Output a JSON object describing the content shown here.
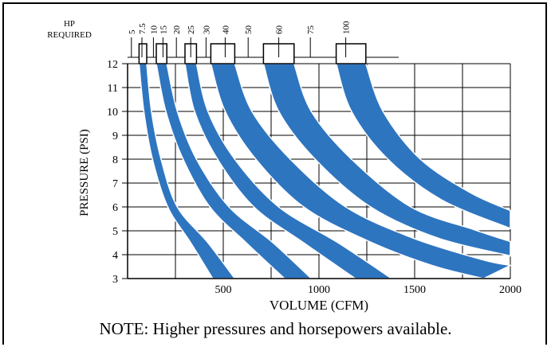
{
  "chart_data": {
    "type": "area",
    "title": "",
    "xlabel": "VOLUME (CFM)",
    "ylabel": "PRESSURE (PSI)",
    "xlim": [
      0,
      2000
    ],
    "ylim": [
      3,
      12
    ],
    "x_ticks": [
      500,
      1000,
      1500,
      2000
    ],
    "y_ticks": [
      3,
      4,
      5,
      6,
      7,
      8,
      9,
      10,
      11,
      12
    ],
    "grid": true,
    "band_color": "#2e75c0",
    "hp_axis": {
      "title_line1": "HP",
      "title_line2": "REQUIRED",
      "labels": [
        {
          "hp": "5",
          "cfm": 20
        },
        {
          "hp": "7.5",
          "cfm": 75
        },
        {
          "hp": "10",
          "cfm": 135
        },
        {
          "hp": "15",
          "cfm": 185
        },
        {
          "hp": "20",
          "cfm": 255
        },
        {
          "hp": "25",
          "cfm": 330
        },
        {
          "hp": "30",
          "cfm": 410
        },
        {
          "hp": "40",
          "cfm": 510
        },
        {
          "hp": "50",
          "cfm": 630
        },
        {
          "hp": "60",
          "cfm": 790
        },
        {
          "hp": "75",
          "cfm": 955
        },
        {
          "hp": "100",
          "cfm": 1140
        }
      ],
      "boxes": [
        {
          "cfm_from": 60,
          "cfm_to": 100
        },
        {
          "cfm_from": 150,
          "cfm_to": 205
        },
        {
          "cfm_from": 300,
          "cfm_to": 360
        },
        {
          "cfm_from": 435,
          "cfm_to": 560
        },
        {
          "cfm_from": 710,
          "cfm_to": 870
        },
        {
          "cfm_from": 1090,
          "cfm_to": 1245
        }
      ]
    },
    "series": [
      {
        "left": [
          [
            60,
            12
          ],
          [
            85,
            10
          ],
          [
            130,
            8
          ],
          [
            210,
            6
          ],
          [
            330,
            4.5
          ],
          [
            445,
            3
          ]
        ],
        "right": [
          [
            100,
            12
          ],
          [
            125,
            10
          ],
          [
            175,
            8
          ],
          [
            260,
            6
          ],
          [
            420,
            4.5
          ],
          [
            560,
            3
          ]
        ]
      },
      {
        "left": [
          [
            150,
            12
          ],
          [
            200,
            10
          ],
          [
            290,
            8
          ],
          [
            430,
            6
          ],
          [
            620,
            4.5
          ],
          [
            820,
            3
          ]
        ],
        "right": [
          [
            205,
            12
          ],
          [
            260,
            10
          ],
          [
            360,
            8
          ],
          [
            530,
            6
          ],
          [
            760,
            4.5
          ],
          [
            960,
            3
          ]
        ]
      },
      {
        "left": [
          [
            300,
            12
          ],
          [
            350,
            10
          ],
          [
            470,
            8
          ],
          [
            660,
            6
          ],
          [
            920,
            4.5
          ],
          [
            1190,
            3
          ]
        ],
        "right": [
          [
            360,
            12
          ],
          [
            420,
            10
          ],
          [
            560,
            8
          ],
          [
            790,
            6
          ],
          [
            1100,
            4.5
          ],
          [
            1380,
            3
          ]
        ]
      },
      {
        "left": [
          [
            435,
            12
          ],
          [
            510,
            10
          ],
          [
            670,
            8
          ],
          [
            920,
            6
          ],
          [
            1250,
            4.6
          ],
          [
            1590,
            3.55
          ],
          [
            1860,
            3
          ]
        ],
        "right": [
          [
            560,
            12
          ],
          [
            650,
            10
          ],
          [
            850,
            8
          ],
          [
            1140,
            6
          ],
          [
            1490,
            4.7
          ],
          [
            1850,
            3.8
          ],
          [
            2000,
            3.55
          ]
        ]
      },
      {
        "left": [
          [
            710,
            12
          ],
          [
            790,
            10
          ],
          [
            980,
            8
          ],
          [
            1270,
            6
          ],
          [
            1620,
            4.7
          ],
          [
            2000,
            3.95
          ]
        ],
        "right": [
          [
            870,
            12
          ],
          [
            960,
            10
          ],
          [
            1170,
            8
          ],
          [
            1480,
            6
          ],
          [
            1810,
            5.05
          ],
          [
            2000,
            4.55
          ]
        ]
      },
      {
        "left": [
          [
            1090,
            12
          ],
          [
            1170,
            10
          ],
          [
            1360,
            8
          ],
          [
            1640,
            6.3
          ],
          [
            2000,
            5.1
          ]
        ],
        "right": [
          [
            1245,
            12
          ],
          [
            1335,
            10
          ],
          [
            1530,
            8
          ],
          [
            1790,
            6.6
          ],
          [
            2000,
            5.85
          ]
        ]
      }
    ]
  },
  "note": "NOTE: Higher pressures and horsepowers available."
}
